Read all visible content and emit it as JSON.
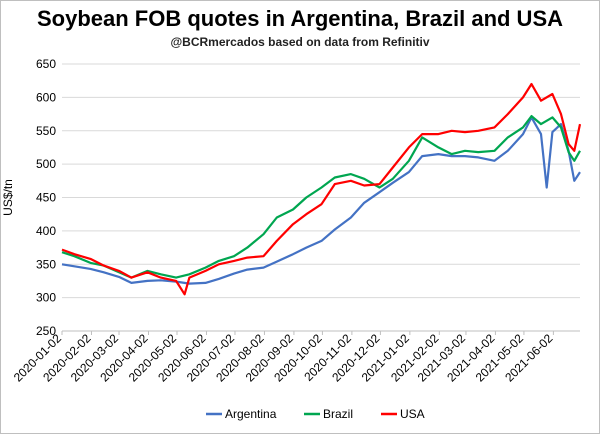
{
  "chart_data": {
    "type": "line",
    "title": "Soybean FOB quotes in Argentina, Brazil and USA",
    "subtitle": "@BCRmercados based on data from Refinitiv",
    "ylabel": "US$/tn",
    "xlabel": "",
    "ylim": [
      250,
      650
    ],
    "yticks": [
      250,
      300,
      350,
      400,
      450,
      500,
      550,
      600,
      650
    ],
    "xlim": [
      "2020-01-02",
      "2021-06-30"
    ],
    "xticks": [
      "2020-01-02",
      "2020-02-02",
      "2020-03-02",
      "2020-04-02",
      "2020-05-02",
      "2020-06-02",
      "2020-07-02",
      "2020-08-02",
      "2020-09-02",
      "2020-10-02",
      "2020-11-02",
      "2020-12-02",
      "2021-01-02",
      "2021-02-02",
      "2021-03-02",
      "2021-04-02",
      "2021-05-02",
      "2021-06-02"
    ],
    "grid": true,
    "legend": "bottom",
    "series": [
      {
        "name": "Argentina",
        "color": "#4472C4",
        "points": [
          [
            "2020-01-02",
            350
          ],
          [
            "2020-01-15",
            347
          ],
          [
            "2020-02-01",
            343
          ],
          [
            "2020-02-15",
            338
          ],
          [
            "2020-03-02",
            331
          ],
          [
            "2020-03-15",
            322
          ],
          [
            "2020-04-01",
            325
          ],
          [
            "2020-04-15",
            326
          ],
          [
            "2020-05-01",
            324
          ],
          [
            "2020-05-15",
            321
          ],
          [
            "2020-06-01",
            322
          ],
          [
            "2020-06-15",
            328
          ],
          [
            "2020-07-01",
            336
          ],
          [
            "2020-07-15",
            342
          ],
          [
            "2020-08-01",
            345
          ],
          [
            "2020-08-15",
            354
          ],
          [
            "2020-09-01",
            365
          ],
          [
            "2020-09-15",
            375
          ],
          [
            "2020-10-01",
            385
          ],
          [
            "2020-10-15",
            402
          ],
          [
            "2020-11-01",
            420
          ],
          [
            "2020-11-15",
            442
          ],
          [
            "2020-12-01",
            458
          ],
          [
            "2020-12-15",
            472
          ],
          [
            "2021-01-01",
            488
          ],
          [
            "2021-01-15",
            512
          ],
          [
            "2021-02-01",
            515
          ],
          [
            "2021-02-15",
            512
          ],
          [
            "2021-03-01",
            512
          ],
          [
            "2021-03-15",
            510
          ],
          [
            "2021-04-01",
            505
          ],
          [
            "2021-04-15",
            520
          ],
          [
            "2021-05-01",
            545
          ],
          [
            "2021-05-10",
            570
          ],
          [
            "2021-05-20",
            545
          ],
          [
            "2021-05-26",
            465
          ],
          [
            "2021-06-01",
            548
          ],
          [
            "2021-06-10",
            560
          ],
          [
            "2021-06-18",
            520
          ],
          [
            "2021-06-24",
            475
          ],
          [
            "2021-06-30",
            488
          ]
        ]
      },
      {
        "name": "Brazil",
        "color": "#00A650",
        "points": [
          [
            "2020-01-02",
            368
          ],
          [
            "2020-01-15",
            362
          ],
          [
            "2020-02-01",
            352
          ],
          [
            "2020-02-15",
            348
          ],
          [
            "2020-03-02",
            338
          ],
          [
            "2020-03-15",
            330
          ],
          [
            "2020-04-01",
            340
          ],
          [
            "2020-04-15",
            335
          ],
          [
            "2020-05-01",
            330
          ],
          [
            "2020-05-15",
            335
          ],
          [
            "2020-06-01",
            345
          ],
          [
            "2020-06-15",
            355
          ],
          [
            "2020-07-01",
            362
          ],
          [
            "2020-07-15",
            375
          ],
          [
            "2020-08-01",
            395
          ],
          [
            "2020-08-15",
            420
          ],
          [
            "2020-09-01",
            432
          ],
          [
            "2020-09-15",
            450
          ],
          [
            "2020-10-01",
            465
          ],
          [
            "2020-10-15",
            480
          ],
          [
            "2020-11-01",
            485
          ],
          [
            "2020-11-15",
            478
          ],
          [
            "2020-12-01",
            465
          ],
          [
            "2020-12-15",
            478
          ],
          [
            "2021-01-01",
            505
          ],
          [
            "2021-01-15",
            540
          ],
          [
            "2021-02-01",
            525
          ],
          [
            "2021-02-15",
            515
          ],
          [
            "2021-03-01",
            520
          ],
          [
            "2021-03-15",
            518
          ],
          [
            "2021-04-01",
            520
          ],
          [
            "2021-04-15",
            540
          ],
          [
            "2021-05-01",
            555
          ],
          [
            "2021-05-10",
            572
          ],
          [
            "2021-05-20",
            560
          ],
          [
            "2021-06-01",
            570
          ],
          [
            "2021-06-10",
            555
          ],
          [
            "2021-06-18",
            518
          ],
          [
            "2021-06-24",
            505
          ],
          [
            "2021-06-30",
            520
          ]
        ]
      },
      {
        "name": "USA",
        "color": "#FF0000",
        "points": [
          [
            "2020-01-02",
            372
          ],
          [
            "2020-01-15",
            365
          ],
          [
            "2020-02-01",
            358
          ],
          [
            "2020-02-15",
            348
          ],
          [
            "2020-03-02",
            340
          ],
          [
            "2020-03-15",
            330
          ],
          [
            "2020-04-01",
            338
          ],
          [
            "2020-04-15",
            330
          ],
          [
            "2020-05-01",
            325
          ],
          [
            "2020-05-10",
            305
          ],
          [
            "2020-05-15",
            330
          ],
          [
            "2020-06-01",
            340
          ],
          [
            "2020-06-15",
            350
          ],
          [
            "2020-07-01",
            355
          ],
          [
            "2020-07-15",
            360
          ],
          [
            "2020-08-01",
            362
          ],
          [
            "2020-08-15",
            385
          ],
          [
            "2020-09-01",
            410
          ],
          [
            "2020-09-15",
            425
          ],
          [
            "2020-10-01",
            440
          ],
          [
            "2020-10-15",
            470
          ],
          [
            "2020-11-01",
            475
          ],
          [
            "2020-11-15",
            468
          ],
          [
            "2020-12-01",
            470
          ],
          [
            "2020-12-15",
            495
          ],
          [
            "2021-01-01",
            525
          ],
          [
            "2021-01-15",
            545
          ],
          [
            "2021-02-01",
            545
          ],
          [
            "2021-02-15",
            550
          ],
          [
            "2021-03-01",
            548
          ],
          [
            "2021-03-15",
            550
          ],
          [
            "2021-04-01",
            555
          ],
          [
            "2021-04-15",
            575
          ],
          [
            "2021-05-01",
            600
          ],
          [
            "2021-05-10",
            620
          ],
          [
            "2021-05-20",
            595
          ],
          [
            "2021-06-01",
            605
          ],
          [
            "2021-06-10",
            575
          ],
          [
            "2021-06-18",
            530
          ],
          [
            "2021-06-24",
            520
          ],
          [
            "2021-06-30",
            560
          ]
        ]
      }
    ]
  }
}
